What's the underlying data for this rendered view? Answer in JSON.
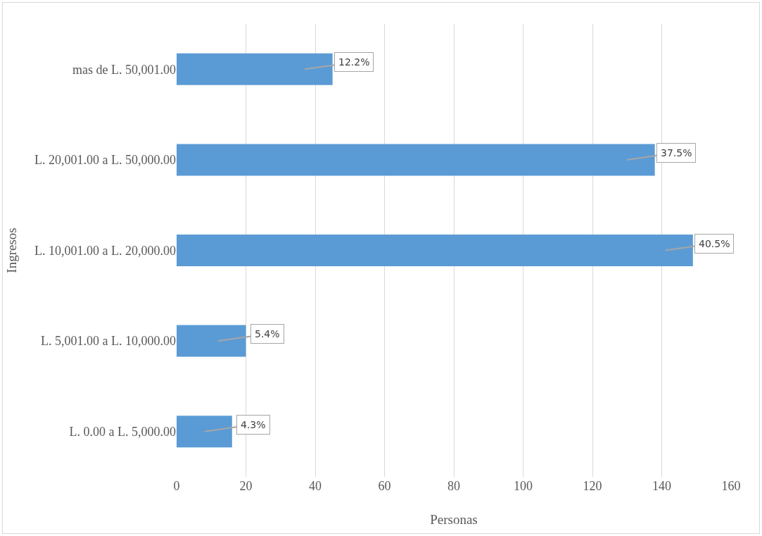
{
  "chart_data": {
    "type": "bar",
    "orientation": "horizontal",
    "xlabel": "Personas",
    "ylabel": "Ingresos",
    "categories": [
      "mas de L. 50,001.00",
      "L. 20,001.00 a L. 50,000.00",
      "L. 10,001.00 a L. 20,000.00",
      "L. 5,001.00 a L. 10,000.00",
      "L. 0.00 a L. 5,000.00"
    ],
    "values": [
      45,
      138,
      149,
      20,
      16
    ],
    "annotations": [
      {
        "text": "12.2%",
        "x": 45,
        "y": "mas de L. 50,001.00"
      },
      {
        "text": "37.5%",
        "x": 138,
        "y": "L. 20,001.00 a L. 50,000.00"
      },
      {
        "text": "40.5%",
        "x": 149,
        "y": "L. 10,001.00 a L. 20,000.00"
      },
      {
        "text": "5.4%",
        "x": 20,
        "y": "L. 5,001.00 a L. 10,000.00"
      },
      {
        "text": "4.3%",
        "x": 16,
        "y": "L. 0.00 a L. 5,000.00"
      }
    ],
    "color": "#5b9bd5",
    "xlim": [
      0,
      160
    ],
    "xticks": [
      0,
      20,
      40,
      60,
      80,
      100,
      120,
      140,
      160
    ],
    "grid": "x",
    "legend": false
  }
}
